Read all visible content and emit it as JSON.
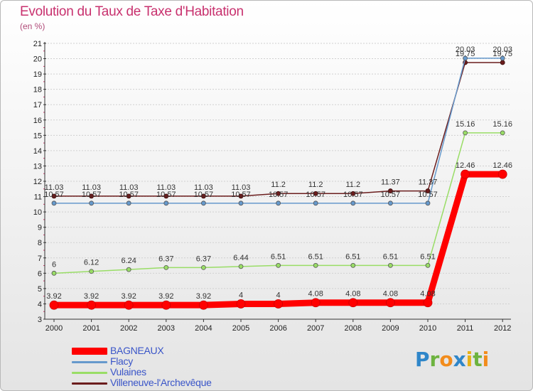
{
  "title": "Evolution du Taux de Taxe d'Habitation",
  "unit": "(en %)",
  "logo_letters": [
    {
      "char": "P",
      "color": "#2f86c9"
    },
    {
      "char": "r",
      "color": "#6db33f"
    },
    {
      "char": "o",
      "color": "#f28c1c"
    },
    {
      "char": "x",
      "color": "#2f86c9"
    },
    {
      "char": "i",
      "color": "#e6b217"
    },
    {
      "char": "t",
      "color": "#6db33f"
    },
    {
      "char": "i",
      "color": "#f28c1c"
    }
  ],
  "chart_data": {
    "type": "line",
    "title": "Evolution du Taux de Taxe d'Habitation",
    "ylabel": "(en %)",
    "xlabel": "",
    "categories": [
      "2000",
      "2001",
      "2002",
      "2003",
      "2004",
      "2005",
      "2006",
      "2007",
      "2008",
      "2009",
      "2010",
      "2011",
      "2012"
    ],
    "ylim": [
      3,
      21
    ],
    "yticks": [
      3,
      4,
      5,
      6,
      7,
      8,
      9,
      10,
      11,
      12,
      13,
      14,
      15,
      16,
      17,
      18,
      19,
      20,
      21
    ],
    "grid": "horizontal",
    "legend_position": "bottom-left",
    "series": [
      {
        "name": "BAGNEAUX",
        "color": "#ff0000",
        "values": [
          3.92,
          3.92,
          3.92,
          3.92,
          3.92,
          4,
          4,
          4.08,
          4.08,
          4.08,
          4.08,
          12.46,
          12.46
        ],
        "labels": [
          "3.92",
          "3.92",
          "3.92",
          "3.92",
          "3.92",
          "4",
          "4",
          "4.08",
          "4.08",
          "4.08",
          "4.08",
          "12.46",
          "12.46"
        ]
      },
      {
        "name": "Flacy",
        "color": "#6699cc",
        "values": [
          10.57,
          10.57,
          10.57,
          10.57,
          10.57,
          10.57,
          10.57,
          10.57,
          10.57,
          10.57,
          10.57,
          20.03,
          20.03
        ],
        "labels": [
          "10.57",
          "10.57",
          "10.57",
          "10.57",
          "10.57",
          "10.57",
          "10.57",
          "10.57",
          "10.57",
          "10.57",
          "10.57",
          "20.03",
          "20.03"
        ]
      },
      {
        "name": "Vulaines",
        "color": "#99dd66",
        "values": [
          6,
          6.12,
          6.24,
          6.37,
          6.37,
          6.44,
          6.51,
          6.51,
          6.51,
          6.51,
          6.51,
          15.16,
          15.16
        ],
        "labels": [
          "6",
          "6.12",
          "6.24",
          "6.37",
          "6.37",
          "6.44",
          "6.51",
          "6.51",
          "6.51",
          "6.51",
          "6.51",
          "15.16",
          "15.16"
        ]
      },
      {
        "name": "Villeneuve-l'Archevêque",
        "color": "#6b1d1d",
        "values": [
          11.03,
          11.03,
          11.03,
          11.03,
          11.03,
          11.03,
          11.2,
          11.2,
          11.2,
          11.37,
          11.37,
          19.75,
          19.75
        ],
        "labels": [
          "11.03",
          "11.03",
          "11.03",
          "11.03",
          "11.03",
          "11.03",
          "11.2",
          "11.2",
          "11.2",
          "11.37",
          "11.37",
          "19.75",
          "19.75"
        ]
      }
    ]
  }
}
